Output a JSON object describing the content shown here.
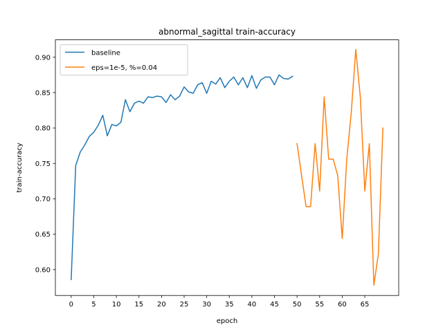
{
  "chart_data": {
    "type": "line",
    "title": "abnormal_sagittal train-accuracy",
    "xlabel": "epoch",
    "ylabel": "train-accuracy",
    "xlim": [
      -3.5,
      72.5
    ],
    "ylim": [
      0.5635,
      0.9245
    ],
    "x_ticks": [
      0,
      5,
      10,
      15,
      20,
      25,
      30,
      35,
      40,
      45,
      50,
      55,
      60,
      65
    ],
    "y_ticks": [
      0.6,
      0.65,
      0.7,
      0.75,
      0.8,
      0.85,
      0.9
    ],
    "y_tick_labels": [
      "0.60",
      "0.65",
      "0.70",
      "0.75",
      "0.80",
      "0.85",
      "0.90"
    ],
    "grid": false,
    "legend_position": "upper-left",
    "series": [
      {
        "name": "baseline",
        "color": "#1f77b4",
        "x": [
          0,
          1,
          2,
          3,
          4,
          5,
          6,
          7,
          8,
          9,
          10,
          11,
          12,
          13,
          14,
          15,
          16,
          17,
          18,
          19,
          20,
          21,
          22,
          23,
          24,
          25,
          26,
          27,
          28,
          29,
          30,
          31,
          32,
          33,
          34,
          35,
          36,
          37,
          38,
          39,
          40,
          41,
          42,
          43,
          44,
          45,
          46,
          47,
          48,
          49
        ],
        "y": [
          0.586,
          0.747,
          0.766,
          0.776,
          0.788,
          0.794,
          0.804,
          0.818,
          0.789,
          0.805,
          0.803,
          0.808,
          0.84,
          0.823,
          0.835,
          0.838,
          0.835,
          0.844,
          0.843,
          0.845,
          0.844,
          0.836,
          0.847,
          0.84,
          0.845,
          0.858,
          0.851,
          0.849,
          0.861,
          0.864,
          0.849,
          0.866,
          0.862,
          0.871,
          0.857,
          0.866,
          0.872,
          0.861,
          0.871,
          0.857,
          0.874,
          0.856,
          0.868,
          0.872,
          0.872,
          0.861,
          0.875,
          0.87,
          0.869,
          0.873
        ]
      },
      {
        "name": "eps=1e-5, %=0.04",
        "color": "#ff7f0e",
        "x": [
          50,
          51,
          52,
          53,
          54,
          55,
          56,
          57,
          58,
          59,
          60,
          61,
          62,
          63,
          64,
          65,
          66,
          67,
          68,
          69
        ],
        "y": [
          0.778,
          0.733,
          0.689,
          0.689,
          0.778,
          0.711,
          0.844,
          0.756,
          0.756,
          0.733,
          0.644,
          0.756,
          0.822,
          0.911,
          0.844,
          0.711,
          0.778,
          0.578,
          0.622,
          0.8
        ]
      }
    ]
  }
}
